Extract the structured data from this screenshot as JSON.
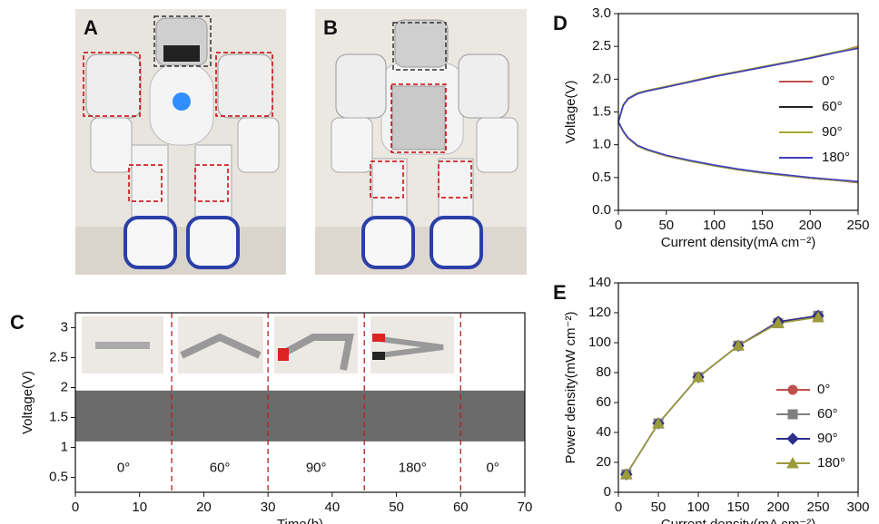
{
  "photos": [
    {
      "label": "A"
    },
    {
      "label": "B"
    }
  ],
  "chart_data": [
    {
      "type": "band",
      "panel": "C",
      "xlabel": "Time(h)",
      "ylabel": "Voltage(V)",
      "xlim": [
        0,
        70
      ],
      "xticks": [
        0,
        10,
        20,
        30,
        40,
        50,
        60,
        70
      ],
      "ylim": [
        0.25,
        3.25
      ],
      "yticks": [
        0.5,
        1.0,
        1.5,
        2.0,
        2.5,
        3.0
      ],
      "band": {
        "low": 1.1,
        "high": 1.95,
        "color": "#6b6b6b"
      },
      "dividers": [
        15,
        30,
        45,
        60
      ],
      "divider_color": "#b22222",
      "annotations": [
        "0°",
        "60°",
        "90°",
        "180°",
        "0°"
      ]
    },
    {
      "type": "line",
      "panel": "D",
      "xlabel": "Current density(mA cm⁻²)",
      "ylabel": "Voltage(V)",
      "xlim": [
        0,
        250
      ],
      "xticks": [
        0,
        50,
        100,
        150,
        200,
        250
      ],
      "ylim": [
        0,
        3
      ],
      "yticks": [
        {
          "value": 0,
          "label": "0.0"
        },
        0.5,
        {
          "value": 1,
          "label": "1.0"
        },
        1.5,
        {
          "value": 2,
          "label": "2.0"
        },
        2.5,
        {
          "value": 3,
          "label": "3.0"
        }
      ],
      "x": [
        0,
        5,
        10,
        20,
        30,
        50,
        75,
        100,
        125,
        150,
        175,
        200,
        225,
        250
      ],
      "series": [
        {
          "name": "0°",
          "color": "#c0504d",
          "charge": [
            1.35,
            1.6,
            1.7,
            1.78,
            1.82,
            1.88,
            1.96,
            2.04,
            2.11,
            2.18,
            2.25,
            2.32,
            2.4,
            2.5
          ],
          "discharge": [
            1.35,
            1.2,
            1.1,
            0.98,
            0.92,
            0.83,
            0.75,
            0.68,
            0.62,
            0.57,
            0.53,
            0.49,
            0.46,
            0.42
          ]
        },
        {
          "name": "60°",
          "color": "#222222",
          "charge": [
            1.35,
            1.6,
            1.7,
            1.78,
            1.82,
            1.88,
            1.96,
            2.04,
            2.11,
            2.18,
            2.25,
            2.32,
            2.4,
            2.48
          ],
          "discharge": [
            1.35,
            1.2,
            1.1,
            0.98,
            0.92,
            0.83,
            0.75,
            0.68,
            0.62,
            0.57,
            0.53,
            0.49,
            0.46,
            0.43
          ]
        },
        {
          "name": "90°",
          "color": "#a8a832",
          "charge": [
            1.35,
            1.61,
            1.71,
            1.79,
            1.83,
            1.89,
            1.97,
            2.05,
            2.12,
            2.19,
            2.26,
            2.33,
            2.41,
            2.49
          ],
          "discharge": [
            1.35,
            1.2,
            1.1,
            0.98,
            0.92,
            0.83,
            0.75,
            0.68,
            0.62,
            0.57,
            0.53,
            0.49,
            0.46,
            0.43
          ]
        },
        {
          "name": "180°",
          "color": "#3f3fbf",
          "charge": [
            1.35,
            1.6,
            1.7,
            1.78,
            1.82,
            1.88,
            1.96,
            2.04,
            2.11,
            2.18,
            2.25,
            2.32,
            2.4,
            2.47
          ],
          "discharge": [
            1.35,
            1.21,
            1.11,
            0.99,
            0.93,
            0.84,
            0.76,
            0.69,
            0.63,
            0.58,
            0.54,
            0.5,
            0.47,
            0.44
          ]
        }
      ]
    },
    {
      "type": "line-marker",
      "panel": "E",
      "xlabel": "Current density(mA cm⁻²)",
      "ylabel": "Power density(mW cm⁻²)",
      "xlim": [
        0,
        300
      ],
      "xticks": [
        0,
        50,
        100,
        150,
        200,
        250,
        300
      ],
      "ylim": [
        0,
        140
      ],
      "yticks": [
        0,
        20,
        40,
        60,
        80,
        100,
        120,
        140
      ],
      "x": [
        10,
        50,
        100,
        150,
        200,
        250
      ],
      "series": [
        {
          "name": "0°",
          "color": "#c0504d",
          "marker": "circle",
          "values": [
            12,
            46,
            77,
            98,
            114,
            118
          ]
        },
        {
          "name": "60°",
          "color": "#7f7f7f",
          "marker": "square",
          "values": [
            12,
            46,
            77,
            98,
            113,
            118
          ]
        },
        {
          "name": "90°",
          "color": "#2e2e8c",
          "marker": "diamond",
          "values": [
            12,
            46,
            77,
            98,
            114,
            118
          ]
        },
        {
          "name": "180°",
          "color": "#9b9b3c",
          "marker": "triangle",
          "values": [
            12,
            46,
            77,
            98,
            113,
            117
          ]
        }
      ]
    }
  ]
}
